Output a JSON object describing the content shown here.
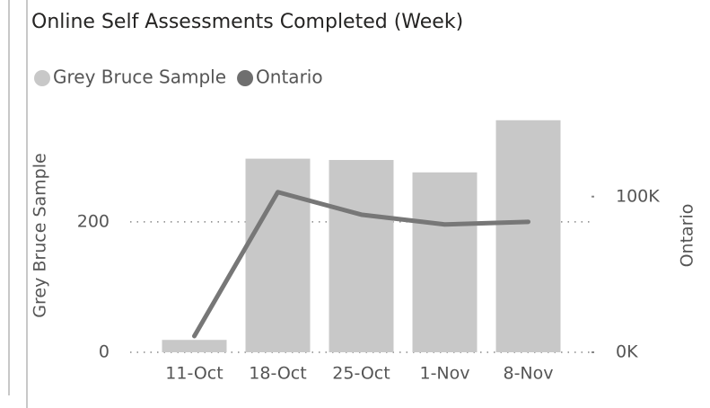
{
  "chart_data": {
    "type": "bar",
    "title": "Online Self Assessments Completed (Week)",
    "categories": [
      "11-Oct",
      "18-Oct",
      "25-Oct",
      "1-Nov",
      "8-Nov"
    ],
    "series": [
      {
        "name": "Grey Bruce Sample",
        "type": "bar",
        "color": "#c8c8c8",
        "values": [
          19,
          297,
          295,
          276,
          356
        ]
      },
      {
        "name": "Ontario",
        "type": "line",
        "axis": "y2",
        "color": "#777777",
        "values": [
          10400,
          102900,
          88400,
          82100,
          83800
        ]
      }
    ],
    "ylabel": "Grey Bruce Sample",
    "y2label": "Ontario",
    "ylim": [
      0,
      375
    ],
    "yticks": [
      0,
      200
    ],
    "y2lim": [
      0,
      157000
    ],
    "y2ticks": [
      {
        "value": 0,
        "label": "0K"
      },
      {
        "value": 100000,
        "label": "100K"
      }
    ],
    "grid": true,
    "legend": "top-left"
  }
}
